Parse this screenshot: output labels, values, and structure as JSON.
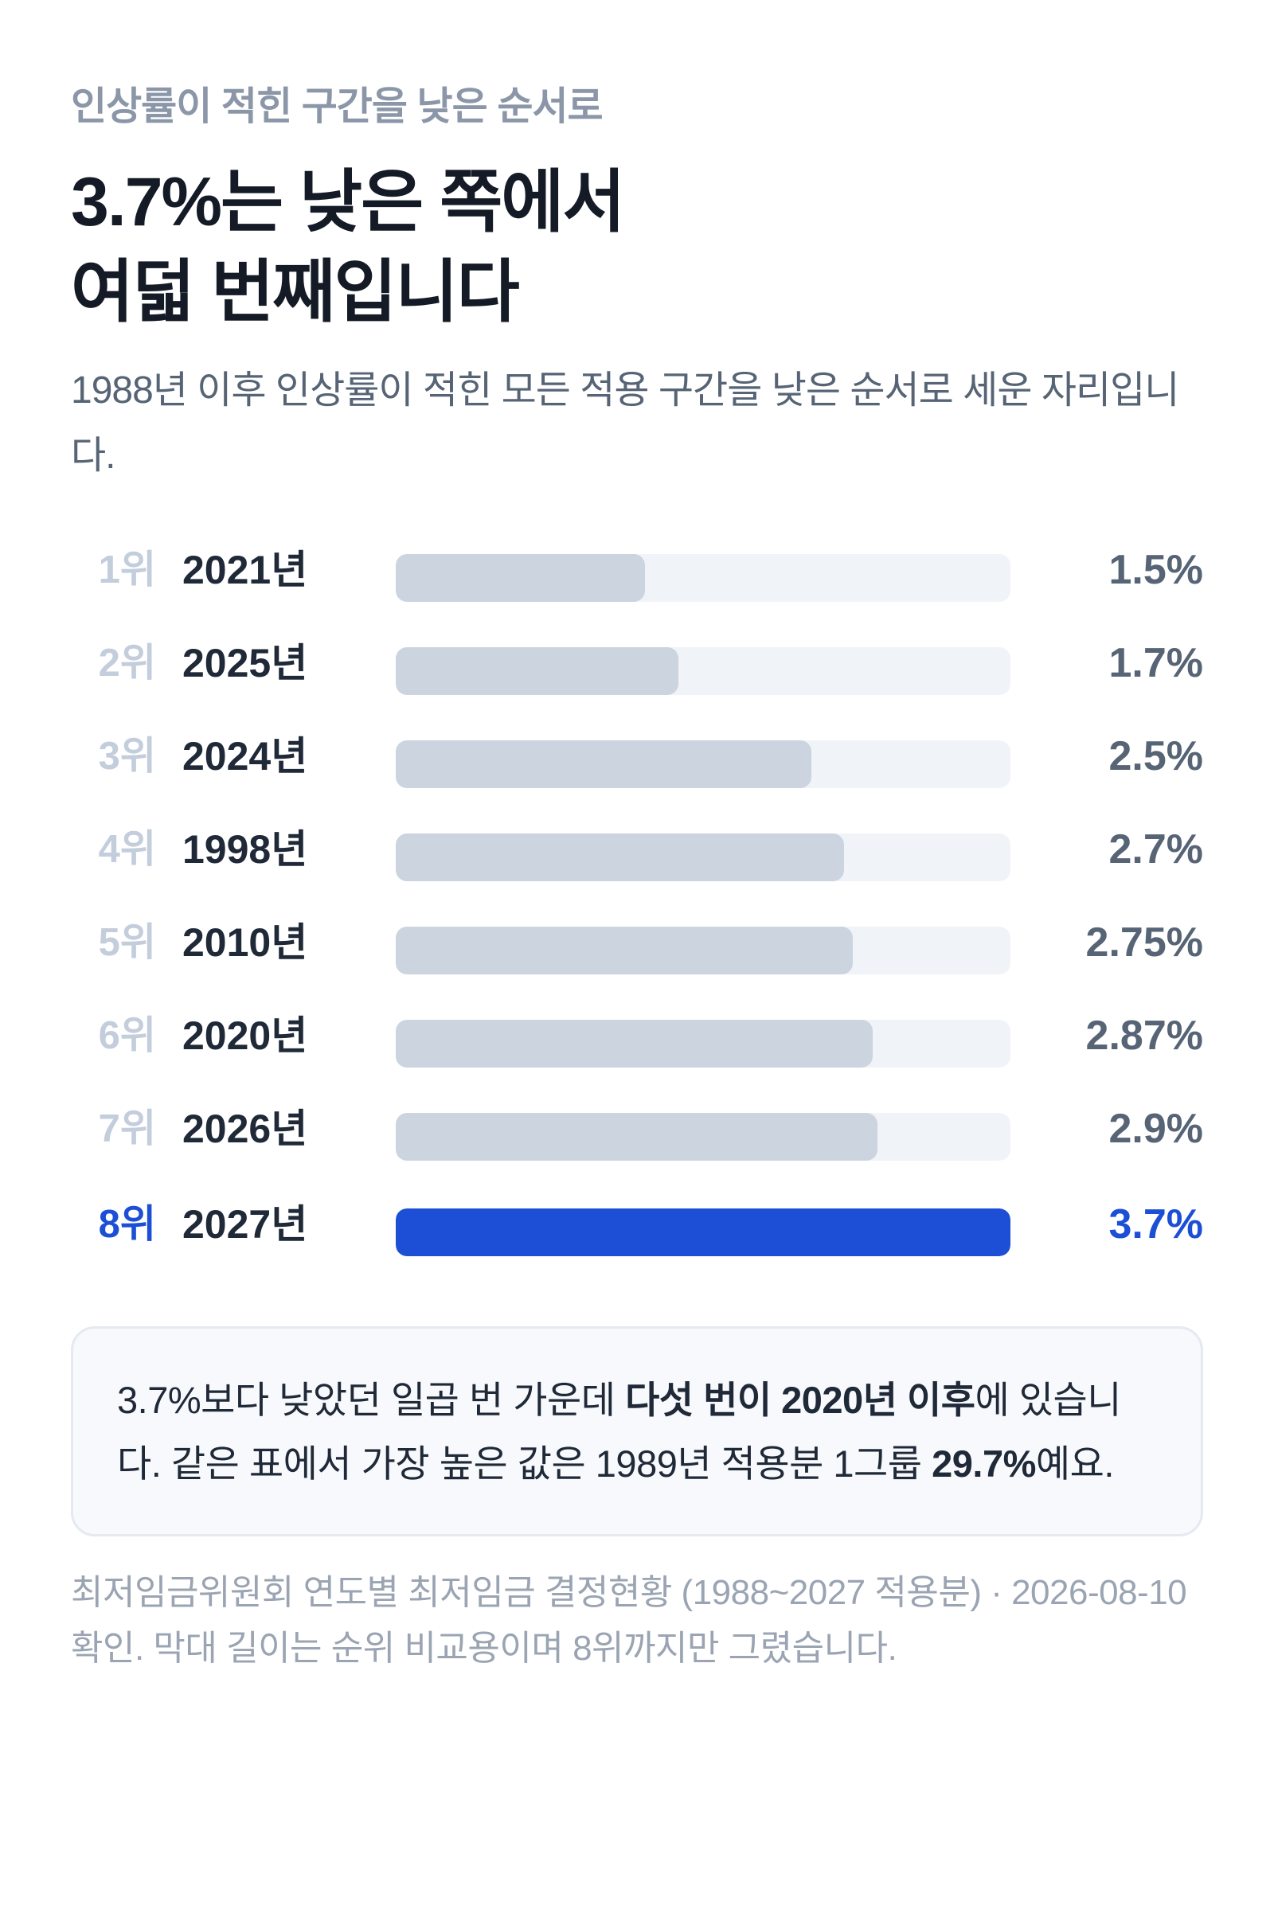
{
  "eyebrow": "인상률이 적힌 구간을 낮은 순서로",
  "title": {
    "line1": "3.7%는 낮은 쪽에서",
    "line2": "여덟 번째입니다"
  },
  "subtitle": "1988년 이후 인상률이 적힌 모든 적용 구간을 낮은 순서로 세운 자리입니다.",
  "colors": {
    "highlight": "#1c4fd6",
    "bar": "#cbd4df",
    "track": "#f0f3f8"
  },
  "chart_data": {
    "type": "bar",
    "orientation": "horizontal",
    "xlim": [
      0,
      3.7
    ],
    "categories": [
      "2021년",
      "2025년",
      "2024년",
      "1998년",
      "2010년",
      "2020년",
      "2026년",
      "2027년"
    ],
    "ranks": [
      "1위",
      "2위",
      "3위",
      "4위",
      "5위",
      "6위",
      "7위",
      "8위"
    ],
    "values": [
      1.5,
      1.7,
      2.5,
      2.7,
      2.75,
      2.87,
      2.9,
      3.7
    ],
    "value_labels": [
      "1.5%",
      "1.7%",
      "2.5%",
      "2.7%",
      "2.75%",
      "2.87%",
      "2.9%",
      "3.7%"
    ],
    "highlight_index": 7
  },
  "note": {
    "p1": "3.7%보다 낮았던 일곱 번 가운데 ",
    "b1": "다섯 번이 2020년 이후",
    "p2": "에 있습니다. 같은 표에서 가장 높은 값은 1989년 적용분 1그룹 ",
    "b2": "29.7%",
    "p3": "예요."
  },
  "footnote": "최저임금위원회 연도별 최저임금 결정현황 (1988~2027 적용분) · 2026-08-10 확인. 막대 길이는 순위 비교용이며 8위까지만 그렸습니다."
}
